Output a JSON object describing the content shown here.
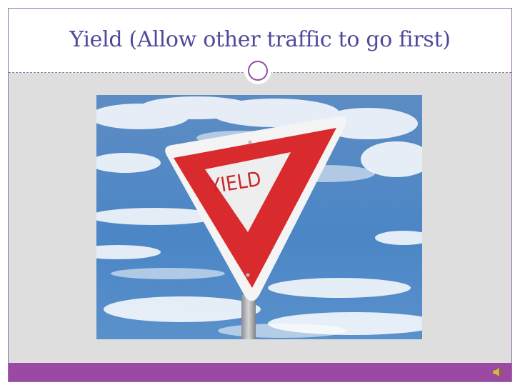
{
  "slide": {
    "title": "Yield (Allow other traffic to go first)",
    "accent_color": "#9c49a3",
    "title_color": "#4e4a9a"
  },
  "image": {
    "sign_text": "YIELD"
  },
  "footer": {
    "audio_icon": "speaker-icon"
  }
}
